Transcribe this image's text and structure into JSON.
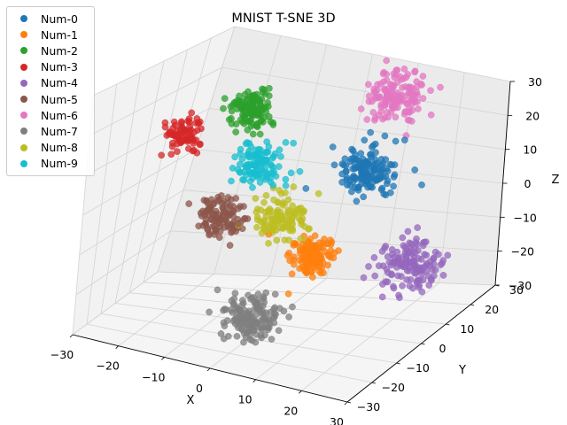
{
  "chart_data": {
    "type": "scatter",
    "projection": "3d",
    "title": "MNIST T-SNE 3D",
    "xlabel": "X",
    "ylabel": "Y",
    "zlabel": "Z",
    "xlim": [
      -30,
      30
    ],
    "ylim": [
      -30,
      30
    ],
    "zlim": [
      -30,
      30
    ],
    "xticks": [
      "−30",
      "−20",
      "−10",
      "0",
      "10",
      "20",
      "30"
    ],
    "yticks": [
      "−30",
      "−20",
      "−10",
      "0",
      "10",
      "20",
      "30"
    ],
    "zticks": [
      "−30",
      "−20",
      "−10",
      "0",
      "10",
      "20",
      "30"
    ],
    "grid": true,
    "legend_position": "top-left",
    "series": [
      {
        "name": "Num-0",
        "color": "#1f77b4",
        "center": [
          8,
          18,
          5
        ],
        "spread": [
          2.8,
          2.8,
          3.2
        ],
        "points": 150
      },
      {
        "name": "Num-1",
        "color": "#ff7f0e",
        "center": [
          6,
          2,
          -12
        ],
        "spread": [
          2.2,
          2.2,
          2.6
        ],
        "points": 120
      },
      {
        "name": "Num-2",
        "color": "#2ca02c",
        "center": [
          -15,
          12,
          18
        ],
        "spread": [
          2.2,
          2.2,
          2.6
        ],
        "points": 120
      },
      {
        "name": "Num-3",
        "color": "#d62728",
        "center": [
          -22,
          -2,
          14
        ],
        "spread": [
          1.8,
          1.8,
          2.2
        ],
        "points": 80
      },
      {
        "name": "Num-4",
        "color": "#9467bd",
        "center": [
          22,
          10,
          -15
        ],
        "spread": [
          2.8,
          2.8,
          3.2
        ],
        "points": 140
      },
      {
        "name": "Num-5",
        "color": "#8c564b",
        "center": [
          -12,
          -2,
          -4
        ],
        "spread": [
          2.0,
          2.0,
          2.4
        ],
        "points": 110
      },
      {
        "name": "Num-6",
        "color": "#e377c2",
        "center": [
          10,
          22,
          24
        ],
        "spread": [
          2.8,
          2.8,
          3.2
        ],
        "points": 140
      },
      {
        "name": "Num-7",
        "color": "#7f7f7f",
        "center": [
          4,
          -20,
          -20
        ],
        "spread": [
          2.8,
          2.8,
          3.2
        ],
        "points": 150
      },
      {
        "name": "Num-8",
        "color": "#bcbd22",
        "center": [
          -2,
          4,
          -4
        ],
        "spread": [
          2.4,
          2.4,
          2.8
        ],
        "points": 110
      },
      {
        "name": "Num-9",
        "color": "#17becf",
        "center": [
          -8,
          4,
          8
        ],
        "spread": [
          2.2,
          2.2,
          2.6
        ],
        "points": 110
      }
    ]
  }
}
